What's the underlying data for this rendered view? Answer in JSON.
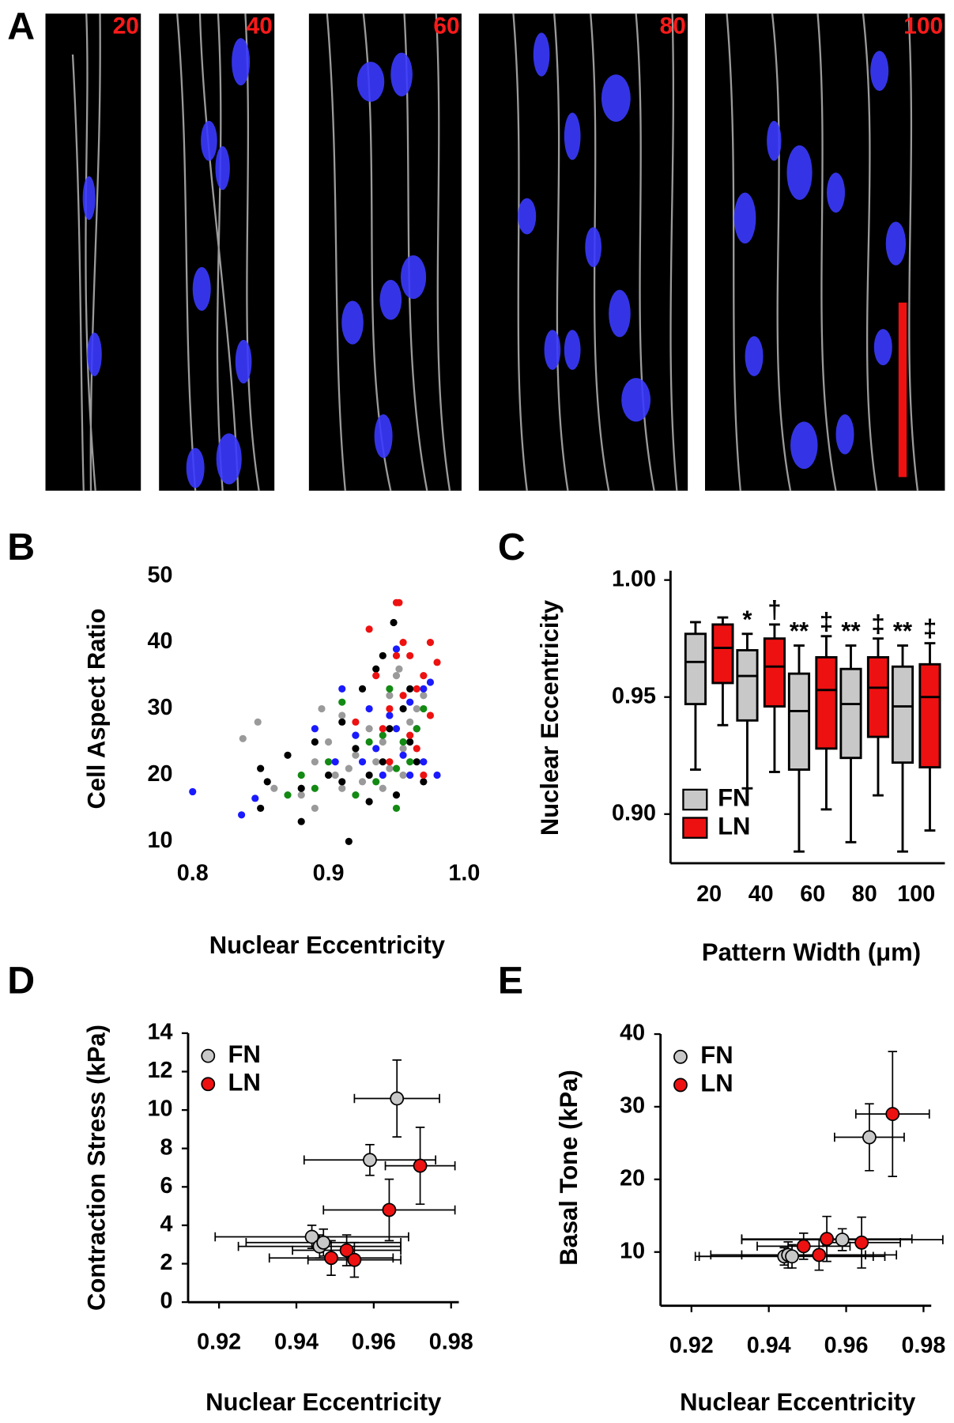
{
  "panel_a": {
    "letter": "A",
    "image_labels": [
      "20",
      "40",
      "60",
      "80",
      "100"
    ]
  },
  "chart_data": [
    {
      "type": "scatter",
      "panel_label": "B",
      "x_label": "Nuclear Eccentricity",
      "y_label": "Cell Aspect Ratio",
      "xlim": [
        0.8,
        1.0
      ],
      "xticks": [
        0.8,
        0.9,
        {
          "value": 1,
          "label": "1.0"
        }
      ],
      "ylim": [
        10,
        50
      ],
      "yticks": [
        10,
        20,
        30,
        40,
        50
      ],
      "grid": false,
      "series": [
        {
          "color": "#9a9a9a",
          "x": [
            0.837,
            0.848,
            0.86,
            0.88,
            0.89,
            0.895,
            0.9,
            0.905,
            0.91,
            0.915,
            0.92,
            0.925,
            0.93,
            0.935,
            0.94,
            0.945,
            0.95,
            0.952,
            0.955,
            0.96,
            0.965,
            0.97,
            0.94,
            0.93,
            0.92,
            0.91,
            0.955,
            0.945,
            0.89
          ],
          "values": [
            25.5,
            28,
            18,
            17,
            22,
            30,
            25,
            20,
            18,
            21,
            23,
            19,
            27,
            22,
            25,
            32,
            35,
            36,
            20,
            28,
            30,
            32,
            18,
            16,
            26,
            29,
            24,
            21,
            15
          ]
        },
        {
          "color": "#000000",
          "x": [
            0.85,
            0.85,
            0.855,
            0.87,
            0.88,
            0.88,
            0.89,
            0.9,
            0.91,
            0.915,
            0.92,
            0.925,
            0.93,
            0.935,
            0.94,
            0.945,
            0.948,
            0.95,
            0.955,
            0.96,
            0.965,
            0.97,
            0.93,
            0.91,
            0.94,
            0.96
          ],
          "values": [
            15,
            21,
            19,
            23,
            13,
            18,
            25,
            20,
            28,
            10,
            24,
            33,
            20,
            36,
            22,
            27,
            43,
            17,
            30,
            25,
            22,
            19,
            16,
            19,
            38,
            33
          ]
        },
        {
          "color": "#1a1aff",
          "x": [
            0.8,
            0.836,
            0.846,
            0.89,
            0.905,
            0.91,
            0.92,
            0.93,
            0.935,
            0.94,
            0.945,
            0.95,
            0.955,
            0.96,
            0.965,
            0.97,
            0.975,
            0.98,
            0.97,
            0.95,
            0.925,
            0.96
          ],
          "values": [
            17.5,
            14,
            16.5,
            27,
            22,
            33,
            26,
            30,
            24,
            20,
            29,
            27,
            23,
            31,
            27,
            22,
            34,
            20,
            33,
            39,
            22,
            20
          ]
        },
        {
          "color": "#138a13",
          "x": [
            0.87,
            0.88,
            0.89,
            0.9,
            0.91,
            0.92,
            0.93,
            0.935,
            0.94,
            0.945,
            0.95,
            0.955,
            0.96,
            0.965,
            0.97,
            0.95
          ],
          "values": [
            17,
            20,
            18,
            22,
            31,
            17,
            25,
            19,
            26,
            33,
            15,
            25,
            22,
            27,
            30,
            21
          ]
        },
        {
          "color": "#ee1111",
          "x": [
            0.92,
            0.93,
            0.935,
            0.94,
            0.945,
            0.95,
            0.952,
            0.955,
            0.96,
            0.965,
            0.97,
            0.975,
            0.98,
            0.96,
            0.965,
            0.955,
            0.97,
            0.945,
            0.95,
            0.975
          ],
          "values": [
            28,
            42,
            35,
            27,
            30,
            46,
            46,
            40,
            38,
            33,
            35,
            29,
            37,
            26,
            24,
            32,
            20,
            22,
            38,
            40
          ]
        }
      ]
    },
    {
      "type": "box",
      "panel_label": "C",
      "x_label": "Pattern Width (μm)",
      "y_label": "Nuclear Eccentricity",
      "categories": [
        "20",
        "40",
        "60",
        "80",
        "100"
      ],
      "ylim": [
        0.879,
        1.004
      ],
      "yticks": [
        {
          "value": 0.9,
          "label": "0.90"
        },
        {
          "value": 0.95,
          "label": "0.95"
        },
        {
          "value": 1,
          "label": "1.00"
        }
      ],
      "legend": "lower left",
      "series": [
        {
          "name": "FN",
          "color": "#c8c8c8",
          "min": [
            0.919,
            0.911,
            0.884,
            0.888,
            0.884
          ],
          "q1": [
            0.947,
            0.94,
            0.919,
            0.924,
            0.922
          ],
          "median": [
            0.965,
            0.959,
            0.944,
            0.947,
            0.946
          ],
          "q3": [
            0.977,
            0.97,
            0.96,
            0.962,
            0.963
          ],
          "max": [
            0.982,
            0.977,
            0.972,
            0.972,
            0.972
          ],
          "sig_labels": [
            null,
            "*",
            "**",
            "**",
            "**"
          ]
        },
        {
          "name": "LN",
          "color": "#ee1111",
          "min": [
            0.938,
            0.918,
            0.902,
            0.908,
            0.893
          ],
          "q1": [
            0.956,
            0.946,
            0.928,
            0.933,
            0.92
          ],
          "median": [
            0.971,
            0.963,
            0.953,
            0.954,
            0.95
          ],
          "q3": [
            0.981,
            0.975,
            0.967,
            0.967,
            0.964
          ],
          "max": [
            0.984,
            0.981,
            0.976,
            0.975,
            0.973
          ],
          "sig_labels": [
            null,
            "†",
            "‡",
            "‡",
            "‡"
          ]
        }
      ]
    },
    {
      "type": "errorbar",
      "panel_label": "D",
      "x_label": "Nuclear Eccentricity",
      "y_label": "Contraction Stress (kPa)",
      "xlim": [
        0.912,
        0.982
      ],
      "xticks": [
        0.92,
        0.94,
        0.96,
        0.98
      ],
      "ylim": [
        0,
        14
      ],
      "yticks": [
        0,
        2,
        4,
        6,
        8,
        10,
        12,
        14
      ],
      "legend": "upper left",
      "series": [
        {
          "name": "FN",
          "color": "#c8c8c8",
          "x": [
            0.966,
            0.959,
            0.944,
            0.946,
            0.947
          ],
          "values": [
            10.6,
            7.4,
            3.4,
            2.9,
            3.1
          ],
          "xerr": [
            0.011,
            0.017,
            0.025,
            0.021,
            0.02
          ],
          "yerr": [
            2,
            0.8,
            0.6,
            0.6,
            0.7
          ]
        },
        {
          "name": "LN",
          "color": "#ee1111",
          "x": [
            0.972,
            0.964,
            0.953,
            0.955,
            0.949
          ],
          "values": [
            7.1,
            4.8,
            2.7,
            2.2,
            2.3
          ],
          "xerr": [
            0.009,
            0.017,
            0.014,
            0.012,
            0.016
          ],
          "yerr": [
            2,
            1.6,
            0.8,
            0.9,
            0.9
          ]
        }
      ]
    },
    {
      "type": "errorbar",
      "panel_label": "E",
      "x_label": "Nuclear Eccentricity",
      "y_label": "Basal Tone (kPa)",
      "xlim": [
        0.912,
        0.982
      ],
      "xticks": [
        0.92,
        0.94,
        0.96,
        0.98
      ],
      "ylim": [
        2.6,
        40
      ],
      "yticks": [
        10,
        20,
        30,
        40
      ],
      "legend": "upper left",
      "series": [
        {
          "name": "FN",
          "color": "#c8c8c8",
          "x": [
            0.966,
            0.959,
            0.944,
            0.945,
            0.946
          ],
          "values": [
            25.8,
            11.7,
            9.4,
            9.6,
            9.4
          ],
          "xerr": [
            0.009,
            0.026,
            0.023,
            0.02,
            0.024
          ],
          "yerr": [
            4.6,
            1.5,
            1.2,
            1.8,
            1.6
          ]
        },
        {
          "name": "LN",
          "color": "#ee1111",
          "x": [
            0.972,
            0.964,
            0.955,
            0.953,
            0.949
          ],
          "values": [
            29,
            11.3,
            11.8,
            9.6,
            10.8
          ],
          "xerr": [
            0.0095,
            0.01,
            0.022,
            0.02,
            0.012
          ],
          "yerr": [
            8.6,
            3.5,
            3.1,
            2.1,
            1.8
          ]
        }
      ]
    }
  ]
}
